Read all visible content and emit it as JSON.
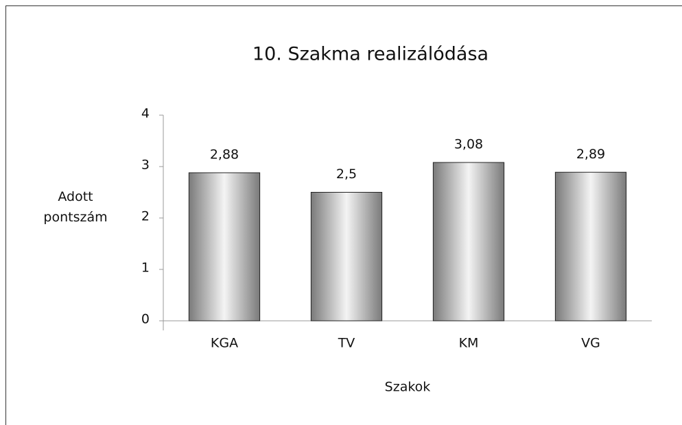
{
  "chart_data": {
    "type": "bar",
    "title": "10. Szakma realizálódása",
    "categories": [
      "KGA",
      "TV",
      "KM",
      "VG"
    ],
    "values": [
      2.88,
      2.5,
      3.08,
      2.89
    ],
    "value_labels": [
      "2,88",
      "2,5",
      "3,08",
      "2,89"
    ],
    "color": "#7a7a7a",
    "ylim": [
      0,
      4
    ],
    "yticks": [
      0,
      1,
      2,
      3,
      4
    ],
    "y_label": "Adott pontszám",
    "x_label": "Szakok"
  }
}
